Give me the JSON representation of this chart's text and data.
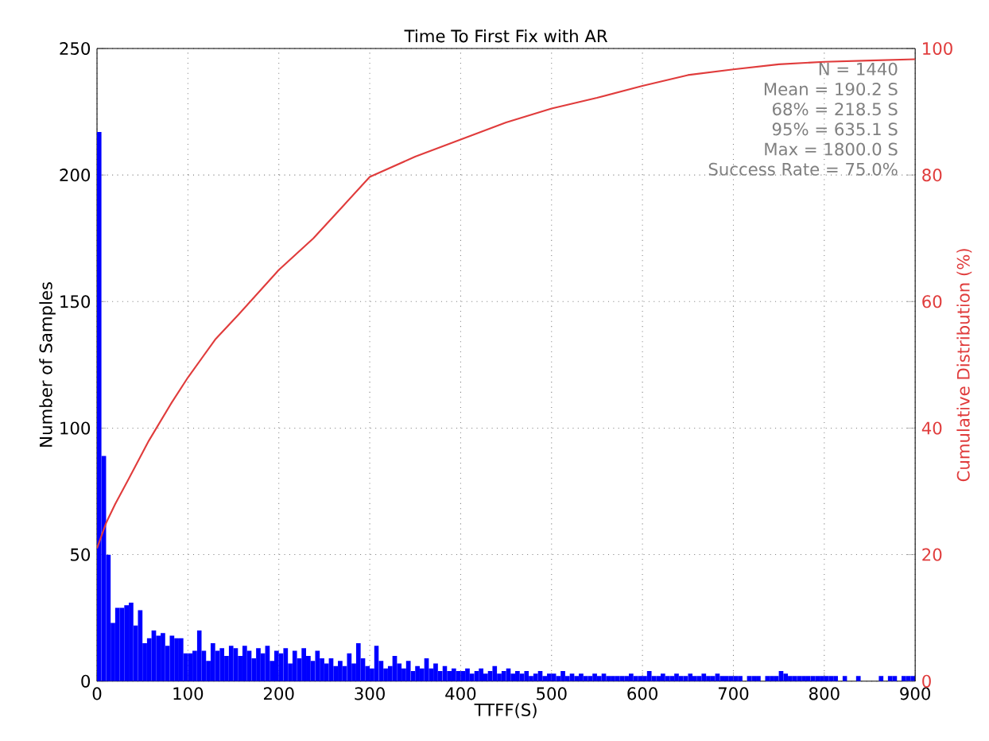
{
  "chart_data": {
    "type": "histogram",
    "title": "Time To First Fix with AR",
    "xlabel": "TTFF(S)",
    "ylabel": "Number of Samples",
    "y2label": "Cumulative Distribution (%)",
    "xlim": [
      0,
      900
    ],
    "xticks": [
      0,
      100,
      200,
      300,
      400,
      500,
      600,
      700,
      800,
      900
    ],
    "ylim": [
      0,
      250
    ],
    "yticks": [
      0,
      50,
      100,
      150,
      200,
      250
    ],
    "y2lim": [
      0,
      100
    ],
    "y2ticks": [
      0,
      20,
      40,
      60,
      80,
      100
    ],
    "grid": true,
    "annotations": [
      "N = 1440",
      "Mean = 190.2 S",
      "68% = 218.5 S",
      "95% = 635.1 S",
      "Max = 1800.0 S",
      "Success Rate = 75.0%"
    ],
    "series": [
      {
        "type": "histogram",
        "color": "#0000ff",
        "bins": [
          0,
          5,
          10,
          15,
          20,
          25,
          30,
          35,
          40,
          45,
          50,
          55,
          60,
          65,
          70,
          75,
          80,
          85,
          90,
          95,
          100,
          105,
          110,
          115,
          120,
          125,
          130,
          135,
          140,
          145,
          150,
          155,
          160,
          165,
          170,
          175,
          180,
          185,
          190,
          195,
          200,
          205,
          210,
          215,
          220,
          225,
          230,
          235,
          240,
          245,
          250,
          255,
          260,
          265,
          270,
          275,
          280,
          285,
          290,
          295,
          300,
          305,
          310,
          315,
          320,
          325,
          330,
          335,
          340,
          345,
          350,
          355,
          360,
          365,
          370,
          375,
          380,
          385,
          390,
          395,
          400,
          405,
          410,
          415,
          420,
          425,
          430,
          435,
          440,
          445,
          450,
          455,
          460,
          465,
          470,
          475,
          480,
          485,
          490,
          495,
          500,
          505,
          510,
          515,
          520,
          525,
          530,
          535,
          540,
          545,
          550,
          555,
          560,
          565,
          570,
          575,
          580,
          585,
          590,
          595,
          600,
          605,
          610,
          615,
          620,
          625,
          630,
          635,
          640,
          645,
          650,
          655,
          660,
          665,
          670,
          675,
          680,
          685,
          690,
          695,
          700,
          705,
          710,
          715,
          720,
          725,
          730,
          735,
          740,
          745,
          750,
          755,
          760,
          765,
          770,
          775,
          780,
          785,
          790,
          795,
          800,
          805,
          810,
          815,
          820,
          825,
          835,
          840,
          860,
          865,
          870,
          875,
          880,
          885,
          890,
          895,
          900
        ],
        "values": [
          217,
          89,
          50,
          23,
          29,
          29,
          30,
          31,
          22,
          28,
          15,
          17,
          20,
          18,
          19,
          14,
          18,
          17,
          17,
          11,
          11,
          12,
          20,
          12,
          8,
          15,
          12,
          13,
          10,
          14,
          13,
          10,
          14,
          12,
          9,
          13,
          11,
          14,
          8,
          12,
          11,
          13,
          7,
          12,
          9,
          13,
          10,
          8,
          12,
          9,
          7,
          9,
          6,
          8,
          6,
          11,
          7,
          15,
          9,
          6,
          5,
          14,
          8,
          5,
          6,
          10,
          7,
          5,
          8,
          4,
          6,
          5,
          9,
          5,
          7,
          4,
          6,
          4,
          5,
          4,
          4,
          5,
          3,
          4,
          5,
          3,
          4,
          6,
          3,
          4,
          5,
          3,
          4,
          3,
          4,
          2,
          3,
          4,
          2,
          3,
          3,
          2,
          4,
          2,
          3,
          2,
          3,
          2,
          2,
          3,
          2,
          3,
          2,
          2,
          2,
          2,
          2,
          3,
          2,
          2,
          2,
          4,
          2,
          2,
          3,
          2,
          2,
          3,
          2,
          2,
          3,
          2,
          2,
          3,
          2,
          2,
          3,
          2,
          2,
          2,
          2,
          2,
          0,
          2,
          2,
          2,
          0,
          2,
          2,
          2,
          4,
          3,
          2,
          2,
          2,
          2,
          2,
          2,
          2,
          2,
          2,
          2,
          2,
          0,
          2,
          0,
          2,
          0,
          2,
          0,
          2,
          2,
          0,
          2,
          2,
          2
        ]
      },
      {
        "type": "line",
        "axis": "y2",
        "color": "#e03c3c",
        "x": [
          0,
          10,
          20,
          35,
          57,
          82,
          100,
          130,
          156,
          200,
          238,
          270,
          300,
          350,
          400,
          450,
          500,
          550,
          600,
          650,
          700,
          750,
          800,
          850,
          900
        ],
        "values": [
          21,
          25,
          28,
          32,
          38,
          44,
          48,
          54,
          58,
          65,
          70,
          75,
          79.7,
          82.9,
          85.6,
          88.3,
          90.5,
          92.2,
          94.1,
          95.8,
          96.7,
          97.5,
          97.9,
          98.1,
          98.3
        ]
      }
    ]
  }
}
